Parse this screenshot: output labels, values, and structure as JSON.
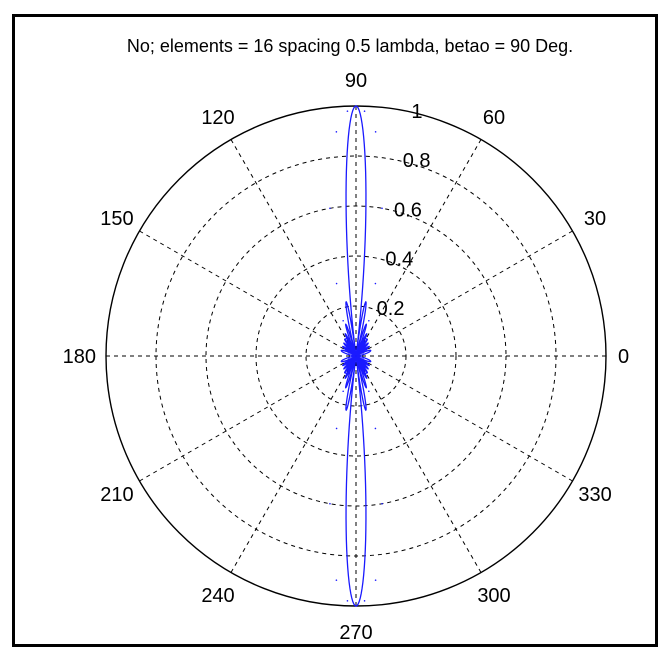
{
  "chart_data": {
    "type": "polar",
    "title": "No; elements = 16 spacing 0.5 lambda, betao = 90 Deg.",
    "angle_labels": [
      "0",
      "30",
      "60",
      "90",
      "120",
      "150",
      "180",
      "210",
      "240",
      "270",
      "300",
      "330"
    ],
    "radial_ticks": [
      0.2,
      0.4,
      0.6,
      0.8,
      1.0
    ],
    "radial_labels": [
      "0.2",
      "0.4",
      "0.6",
      "0.8",
      "1"
    ],
    "rlim": [
      0,
      1
    ],
    "grid": true,
    "series": [
      {
        "elements": 16,
        "spacing_lambda": 0.5,
        "steer_deg": 90,
        "theta_deg": [
          0,
          15,
          30,
          45,
          60,
          70,
          75,
          80,
          85,
          88,
          90,
          92,
          95,
          100,
          105,
          110,
          120,
          135,
          150,
          165,
          180,
          195,
          210,
          225,
          240,
          250,
          255,
          260,
          265,
          268,
          270,
          272,
          275,
          280,
          285,
          290,
          300,
          315,
          330,
          345,
          360
        ],
        "r": [
          0.0,
          0.03,
          0.05,
          0.06,
          0.08,
          0.15,
          0.3,
          0.6,
          0.9,
          0.98,
          1.0,
          0.98,
          0.9,
          0.6,
          0.3,
          0.15,
          0.08,
          0.06,
          0.05,
          0.03,
          0.0,
          0.03,
          0.05,
          0.06,
          0.08,
          0.15,
          0.3,
          0.6,
          0.9,
          0.98,
          1.0,
          0.98,
          0.9,
          0.6,
          0.3,
          0.15,
          0.08,
          0.06,
          0.05,
          0.03,
          0.0
        ]
      }
    ],
    "colors": {
      "pattern": "#1a1aff",
      "grid": "#000000",
      "outer_circle": "#000000"
    }
  }
}
